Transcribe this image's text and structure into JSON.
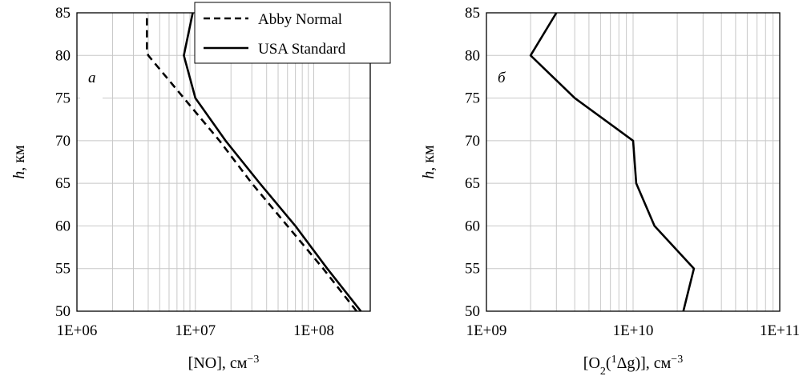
{
  "chart_data": [
    {
      "type": "line",
      "panel_label": "а",
      "xscale": "log",
      "xlim": [
        1000000,
        300000000
      ],
      "ylim": [
        50,
        85
      ],
      "xticks": [
        1000000,
        10000000,
        100000000
      ],
      "xtick_labels": [
        "1E+06",
        "1E+07",
        "1E+08"
      ],
      "yticks": [
        50,
        55,
        60,
        65,
        70,
        75,
        80,
        85
      ],
      "ytick_labels": [
        "50",
        "55",
        "60",
        "65",
        "70",
        "75",
        "80",
        "85"
      ],
      "xlabel": {
        "main": "[NO], см",
        "sup": "−3"
      },
      "ylabel": {
        "italic": "h",
        "rest": ", км"
      },
      "grid": true,
      "legend": "top-right",
      "series": [
        {
          "name": "Abby Normal",
          "style": "dashed",
          "color": "#000000",
          "points": [
            [
              230000000,
              50
            ],
            [
              120000000,
              55
            ],
            [
              60000000,
              60
            ],
            [
              30000000,
              65
            ],
            [
              16000000,
              70
            ],
            [
              8000000,
              75
            ],
            [
              4000000,
              80
            ],
            [
              3900000,
              80.5
            ],
            [
              3900000,
              85
            ]
          ]
        },
        {
          "name": "USA Standard",
          "style": "solid",
          "color": "#000000",
          "points": [
            [
              250000000,
              50
            ],
            [
              130000000,
              55
            ],
            [
              70000000,
              60
            ],
            [
              35000000,
              65
            ],
            [
              18000000,
              70
            ],
            [
              10000000,
              75
            ],
            [
              8000000,
              80
            ],
            [
              9500000,
              85
            ]
          ]
        }
      ]
    },
    {
      "type": "line",
      "panel_label": "б",
      "xscale": "log",
      "xlim": [
        1000000000,
        100000000000
      ],
      "ylim": [
        50,
        85
      ],
      "xticks": [
        1000000000,
        10000000000,
        100000000000
      ],
      "xtick_labels": [
        "1E+09",
        "1E+10",
        "1E+11"
      ],
      "yticks": [
        50,
        55,
        60,
        65,
        70,
        75,
        80,
        85
      ],
      "ytick_labels": [
        "50",
        "55",
        "60",
        "65",
        "70",
        "75",
        "80",
        "85"
      ],
      "xlabel": {
        "pre": "[O",
        "sub": "2",
        "mid": "(",
        "sup1": "1",
        "delta": "Δg",
        "post": ")], см",
        "sup2": "−3"
      },
      "ylabel": {
        "italic": "h",
        "rest": ", км"
      },
      "grid": true,
      "series": [
        {
          "style": "solid",
          "color": "#000000",
          "points": [
            [
              22000000000,
              50
            ],
            [
              26000000000,
              55
            ],
            [
              14000000000,
              60
            ],
            [
              10500000000,
              65
            ],
            [
              10000000000,
              70
            ],
            [
              4000000000,
              75
            ],
            [
              2000000000,
              80
            ],
            [
              3000000000,
              85
            ]
          ]
        }
      ]
    }
  ]
}
